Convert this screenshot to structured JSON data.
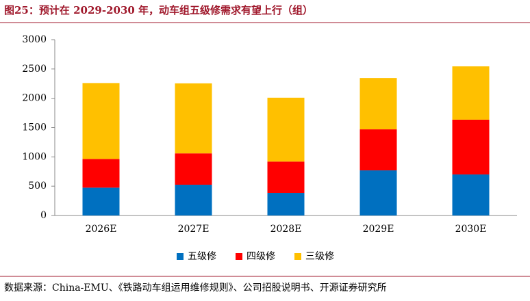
{
  "chart_data": {
    "type": "stacked-bar",
    "title": "图25：预计在 2029-2030 年，动车组五级修需求有望上行（组）",
    "categories": [
      "2026E",
      "2027E",
      "2028E",
      "2029E",
      "2030E"
    ],
    "series": [
      {
        "name": "五级修",
        "color": "#0070c0",
        "values": [
          475,
          525,
          385,
          770,
          700
        ]
      },
      {
        "name": "四级修",
        "color": "#ff0000",
        "values": [
          490,
          535,
          535,
          700,
          935
        ]
      },
      {
        "name": "三级修",
        "color": "#ffc000",
        "values": [
          1295,
          1195,
          1090,
          875,
          910
        ]
      }
    ],
    "ylim": [
      0,
      3000
    ],
    "yticks": [
      0,
      500,
      1000,
      1500,
      2000,
      2500,
      3000
    ],
    "grid": false,
    "legend": "bottom",
    "source": "数据来源：China-EMU、《铁路动车组运用维修规则》、公司招股说明书、开源证券研究所"
  }
}
